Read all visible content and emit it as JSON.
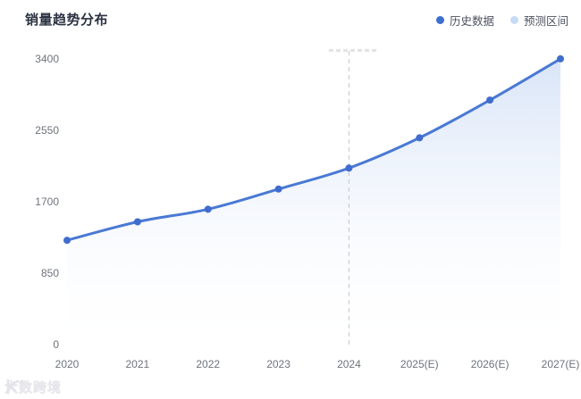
{
  "page": {
    "title": "销量趋势分布"
  },
  "legend": [
    {
      "label": "历史数据",
      "color": "#3d6fd0"
    },
    {
      "label": "预测区间",
      "color": "#c7dbf7"
    }
  ],
  "watermark": {
    "text": "大数跨境",
    "icon": "brand-logo"
  },
  "chart_data": {
    "type": "line",
    "title": "销量趋势分布",
    "categories": [
      "2020",
      "2021",
      "2022",
      "2023",
      "2024",
      "2025(E)",
      "2026(E)",
      "2027(E)"
    ],
    "series": [
      {
        "name": "历史数据",
        "values": [
          1230,
          1450,
          1600,
          1840,
          2090,
          2450,
          2900,
          3390
        ]
      }
    ],
    "xlabel": "",
    "ylabel": "",
    "y_ticks": [
      0,
      850,
      1700,
      2550,
      3400
    ],
    "ylim": [
      0,
      3400
    ],
    "smooth": true,
    "area": true,
    "grid": false,
    "legend_position": "top-right",
    "forecast_divider_at": "2024",
    "colors": {
      "line": "#4a79d4",
      "point": "#3f6cce",
      "area_top": "#a9c4ee",
      "divider": "#cfd1d6"
    }
  }
}
